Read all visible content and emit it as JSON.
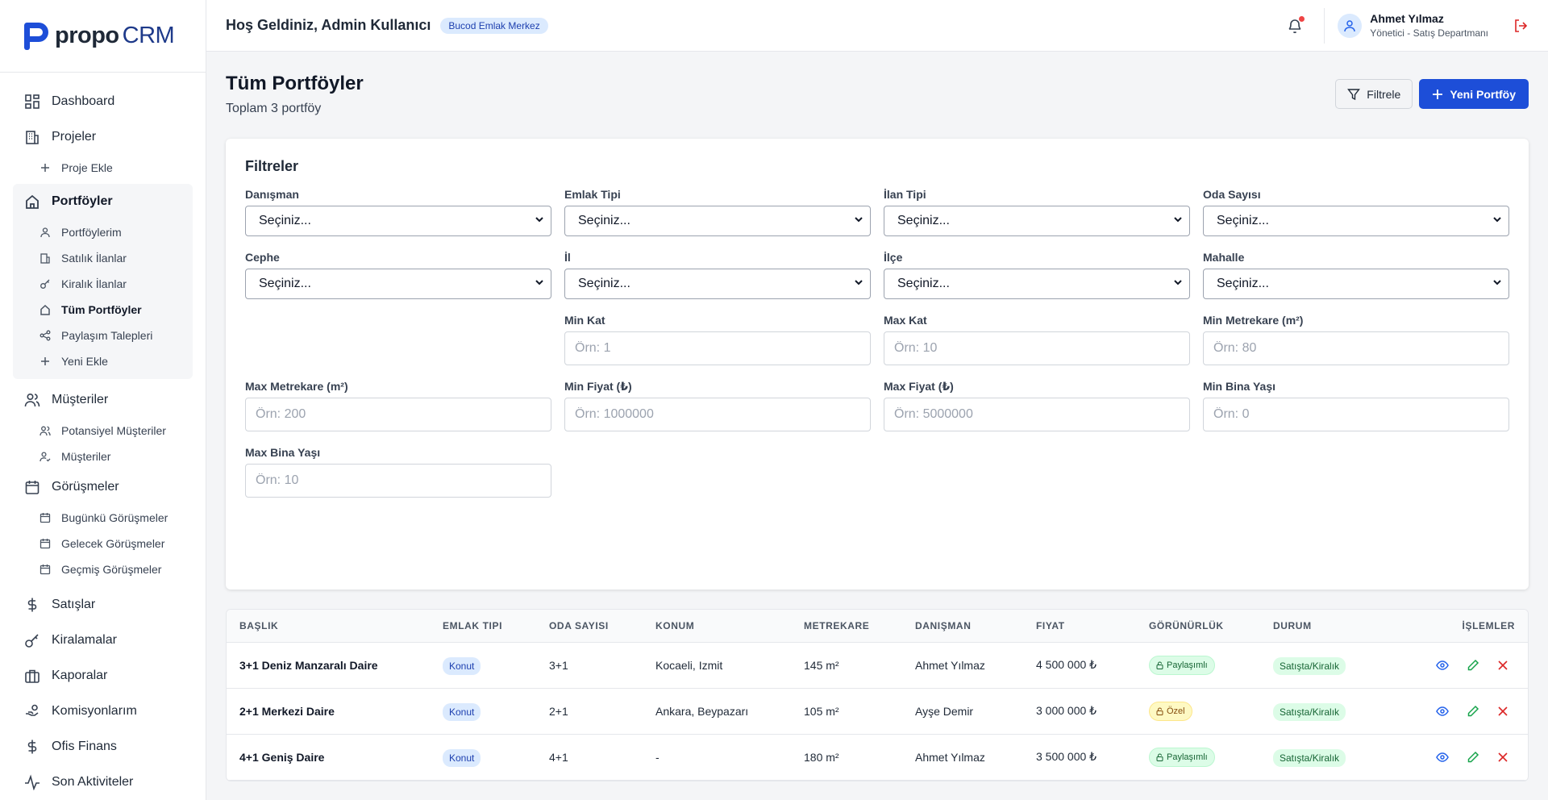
{
  "brand": {
    "name": "propo",
    "suffix": "CRM"
  },
  "sidebar": {
    "dashboard": "Dashboard",
    "projects": "Projeler",
    "add_project": "Proje Ekle",
    "portfolios": "Portföylerim",
    "portfolios_group": "Portföyler",
    "sale_listings": "Satılık İlanlar",
    "rent_listings": "Kiralık İlanlar",
    "all_portfolios": "Tüm Portföyler",
    "share_requests": "Paylaşım Talepleri",
    "add_new": "Yeni Ekle",
    "customers": "Müşteriler",
    "potential_customers": "Potansiyel Müşteriler",
    "customers_sub": "Müşteriler",
    "meetings": "Görüşmeler",
    "today_meetings": "Bugünkü Görüşmeler",
    "future_meetings": "Gelecek Görüşmeler",
    "past_meetings": "Geçmiş Görüşmeler",
    "sales": "Satışlar",
    "rentals": "Kiralamalar",
    "deposits": "Kaporalar",
    "commissions": "Komisyonlarım",
    "office_finance": "Ofis Finans",
    "recent_activities": "Son Aktiviteler"
  },
  "header": {
    "welcome": "Hoş Geldiniz, Admin Kullanıcı",
    "agency": "Bucod Emlak Merkez",
    "user_name": "Ahmet Yılmaz",
    "user_role": "Yönetici - Satış Departmanı"
  },
  "page": {
    "title": "Tüm Portföyler",
    "subtitle": "Toplam 3 portföy",
    "filter_button": "Filtrele",
    "new_button": "Yeni Portföy"
  },
  "filters": {
    "title": "Filtreler",
    "consultant": {
      "label": "Danışman",
      "value": "Seçiniz..."
    },
    "property_type": {
      "label": "Emlak Tipi",
      "value": "Seçiniz..."
    },
    "listing_type": {
      "label": "İlan Tipi",
      "value": "Seçiniz..."
    },
    "rooms": {
      "label": "Oda Sayısı",
      "value": "Seçiniz..."
    },
    "facade": {
      "label": "Cephe",
      "value": "Seçiniz..."
    },
    "city": {
      "label": "İl",
      "value": "Seçiniz..."
    },
    "district": {
      "label": "İlçe",
      "value": "Seçiniz..."
    },
    "neighborhood": {
      "label": "Mahalle",
      "value": "Seçiniz..."
    },
    "min_floor": {
      "label": "Min Kat",
      "placeholder": "Örn: 1"
    },
    "max_floor": {
      "label": "Max Kat",
      "placeholder": "Örn: 10"
    },
    "min_area": {
      "label": "Min Metrekare (m²)",
      "placeholder": "Örn: 80"
    },
    "max_area": {
      "label": "Max Metrekare (m²)",
      "placeholder": "Örn: 200"
    },
    "min_price": {
      "label": "Min Fiyat (₺)",
      "placeholder": "Örn: 1000000"
    },
    "max_price": {
      "label": "Max Fiyat (₺)",
      "placeholder": "Örn: 5000000"
    },
    "min_age": {
      "label": "Min Bina Yaşı",
      "placeholder": "Örn: 0"
    },
    "max_age": {
      "label": "Max Bina Yaşı",
      "placeholder": "Örn: 10"
    }
  },
  "table": {
    "headers": [
      "BAŞLIK",
      "EMLAK TIPI",
      "ODA SAYISI",
      "KONUM",
      "METREKARE",
      "DANIŞMAN",
      "FIYAT",
      "GÖRÜNÜRLÜK",
      "DURUM",
      "İŞLEMLER"
    ],
    "rows": [
      {
        "title": "3+1 Deniz Manzaralı Daire",
        "type": "Konut",
        "rooms": "3+1",
        "location": "Kocaeli, Izmit",
        "area": "145 m²",
        "consultant": "Ahmet Yılmaz",
        "price": "4 500 000 ₺",
        "visibility": "Paylaşımlı",
        "status": "Satışta/Kiralık"
      },
      {
        "title": "2+1 Merkezi Daire",
        "type": "Konut",
        "rooms": "2+1",
        "location": "Ankara, Beypazarı",
        "area": "105 m²",
        "consultant": "Ayşe Demir",
        "price": "3 000 000 ₺",
        "visibility": "Özel",
        "status": "Satışta/Kiralık"
      },
      {
        "title": "4+1 Geniş Daire",
        "type": "Konut",
        "rooms": "4+1",
        "location": "-",
        "area": "180 m²",
        "consultant": "Ahmet Yılmaz",
        "price": "3 500 000 ₺",
        "visibility": "Paylaşımlı",
        "status": "Satışta/Kiralık"
      }
    ]
  },
  "colors": {
    "primary": "#1d4ed8",
    "danger": "#dc2626",
    "success": "#16a34a"
  }
}
